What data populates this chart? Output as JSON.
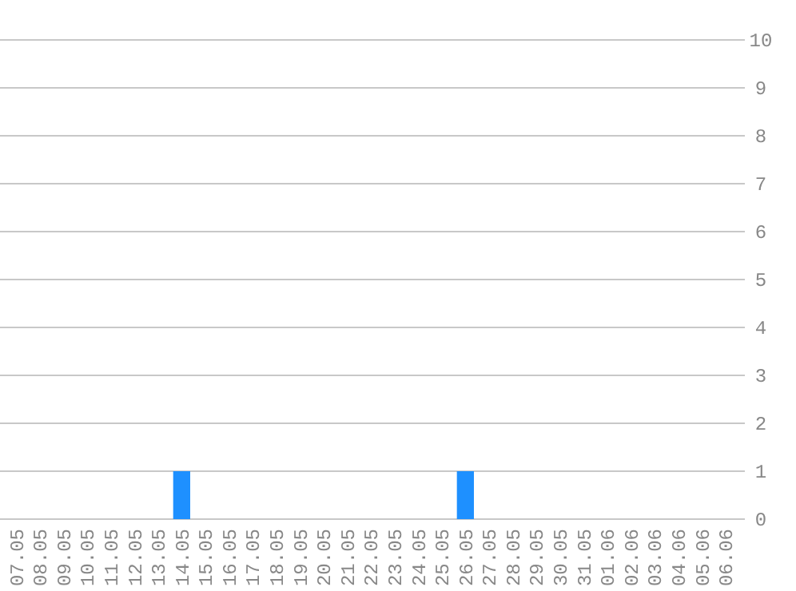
{
  "chart_data": {
    "type": "bar",
    "categories": [
      "07.05",
      "08.05",
      "09.05",
      "10.05",
      "11.05",
      "12.05",
      "13.05",
      "14.05",
      "15.05",
      "16.05",
      "17.05",
      "18.05",
      "19.05",
      "20.05",
      "21.05",
      "22.05",
      "23.05",
      "24.05",
      "25.05",
      "26.05",
      "27.05",
      "28.05",
      "29.05",
      "30.05",
      "31.05",
      "01.06",
      "02.06",
      "03.06",
      "04.06",
      "05.06",
      "06.06"
    ],
    "values": [
      0,
      0,
      0,
      0,
      0,
      0,
      0,
      1,
      0,
      0,
      0,
      0,
      0,
      0,
      0,
      0,
      0,
      0,
      0,
      1,
      0,
      0,
      0,
      0,
      0,
      0,
      0,
      0,
      0,
      0,
      0
    ],
    "color": "#1e90ff",
    "ylim": [
      0,
      10
    ],
    "yticks": [
      0,
      1,
      2,
      3,
      4,
      5,
      6,
      7,
      8,
      9,
      10
    ],
    "grid": "y"
  }
}
